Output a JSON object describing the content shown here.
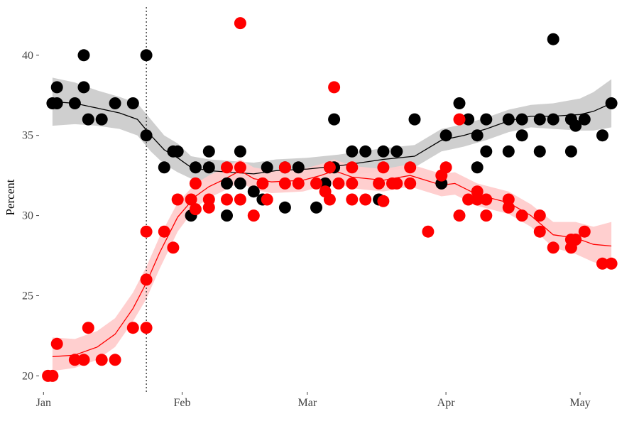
{
  "chart_data": {
    "type": "scatter",
    "title": "",
    "xlabel": "",
    "ylabel": "Percent",
    "xlim": [
      "2021-12-31",
      "2022-05-11"
    ],
    "ylim": [
      19,
      43
    ],
    "grid": false,
    "legend": "none",
    "x_ticks": [
      {
        "date": "2022-01-01",
        "label": "Jan"
      },
      {
        "date": "2022-02-01",
        "label": "Feb"
      },
      {
        "date": "2022-03-01",
        "label": "Mar"
      },
      {
        "date": "2022-04-01",
        "label": "Apr"
      },
      {
        "date": "2022-05-01",
        "label": "May"
      }
    ],
    "y_ticks": [
      20,
      25,
      30,
      35,
      40
    ],
    "vline": {
      "date": "2022-01-24",
      "style": "dotted",
      "color": "#333333"
    },
    "series": [
      {
        "color": "#000000",
        "band_color": "#cccccc",
        "points": [
          [
            "2022-01-03",
            37
          ],
          [
            "2022-01-04",
            37
          ],
          [
            "2022-01-04",
            38
          ],
          [
            "2022-01-08",
            37
          ],
          [
            "2022-01-10",
            40
          ],
          [
            "2022-01-10",
            38
          ],
          [
            "2022-01-11",
            36
          ],
          [
            "2022-01-14",
            36
          ],
          [
            "2022-01-17",
            37
          ],
          [
            "2022-01-21",
            37
          ],
          [
            "2022-01-24",
            40
          ],
          [
            "2022-01-24",
            35
          ],
          [
            "2022-01-28",
            33
          ],
          [
            "2022-01-30",
            34
          ],
          [
            "2022-01-31",
            34
          ],
          [
            "2022-02-03",
            30
          ],
          [
            "2022-02-04",
            33
          ],
          [
            "2022-02-07",
            33
          ],
          [
            "2022-02-07",
            34
          ],
          [
            "2022-02-11",
            30
          ],
          [
            "2022-02-11",
            32
          ],
          [
            "2022-02-14",
            32
          ],
          [
            "2022-02-14",
            34
          ],
          [
            "2022-02-17",
            31.5
          ],
          [
            "2022-02-19",
            31
          ],
          [
            "2022-02-20",
            33
          ],
          [
            "2022-02-24",
            30.5
          ],
          [
            "2022-02-24",
            33
          ],
          [
            "2022-02-27",
            33
          ],
          [
            "2022-03-03",
            30.5
          ],
          [
            "2022-03-05",
            32
          ],
          [
            "2022-03-06",
            33
          ],
          [
            "2022-03-07",
            36
          ],
          [
            "2022-03-07",
            33
          ],
          [
            "2022-03-11",
            34
          ],
          [
            "2022-03-14",
            34
          ],
          [
            "2022-03-17",
            31
          ],
          [
            "2022-03-18",
            34
          ],
          [
            "2022-03-21",
            34
          ],
          [
            "2022-03-25",
            36
          ],
          [
            "2022-03-31",
            32
          ],
          [
            "2022-04-01",
            35
          ],
          [
            "2022-04-04",
            37
          ],
          [
            "2022-04-06",
            36
          ],
          [
            "2022-04-08",
            35
          ],
          [
            "2022-04-08",
            33
          ],
          [
            "2022-04-10",
            36
          ],
          [
            "2022-04-10",
            34
          ],
          [
            "2022-04-15",
            36
          ],
          [
            "2022-04-15",
            34
          ],
          [
            "2022-04-18",
            36
          ],
          [
            "2022-04-18",
            35
          ],
          [
            "2022-04-22",
            36
          ],
          [
            "2022-04-22",
            34
          ],
          [
            "2022-04-25",
            36
          ],
          [
            "2022-04-25",
            41
          ],
          [
            "2022-04-29",
            36
          ],
          [
            "2022-04-29",
            34
          ],
          [
            "2022-04-30",
            35.6
          ],
          [
            "2022-05-02",
            36
          ],
          [
            "2022-05-06",
            35
          ],
          [
            "2022-05-08",
            37
          ]
        ],
        "trend": [
          [
            "2022-01-03",
            37.1
          ],
          [
            "2022-01-08",
            37.0
          ],
          [
            "2022-01-13",
            36.7
          ],
          [
            "2022-01-18",
            36.4
          ],
          [
            "2022-01-22",
            36.0
          ],
          [
            "2022-01-25",
            35.0
          ],
          [
            "2022-01-28",
            34.1
          ],
          [
            "2022-01-31",
            33.6
          ],
          [
            "2022-02-03",
            33.0
          ],
          [
            "2022-02-07",
            32.8
          ],
          [
            "2022-02-12",
            32.7
          ],
          [
            "2022-02-17",
            32.6
          ],
          [
            "2022-02-22",
            32.8
          ],
          [
            "2022-03-01",
            32.9
          ],
          [
            "2022-03-08",
            33.1
          ],
          [
            "2022-03-13",
            33.3
          ],
          [
            "2022-03-18",
            33.5
          ],
          [
            "2022-03-25",
            33.7
          ],
          [
            "2022-03-31",
            34.7
          ],
          [
            "2022-04-05",
            35.0
          ],
          [
            "2022-04-10",
            35.4
          ],
          [
            "2022-04-15",
            35.9
          ],
          [
            "2022-04-20",
            36.2
          ],
          [
            "2022-04-25",
            36.2
          ],
          [
            "2022-05-01",
            36.3
          ],
          [
            "2022-05-04",
            36.5
          ],
          [
            "2022-05-08",
            37.0
          ]
        ],
        "band": [
          [
            "2022-01-03",
            35.6,
            38.6
          ],
          [
            "2022-01-08",
            35.7,
            38.3
          ],
          [
            "2022-01-13",
            35.6,
            37.8
          ],
          [
            "2022-01-18",
            35.4,
            37.4
          ],
          [
            "2022-01-22",
            35.0,
            37.0
          ],
          [
            "2022-01-25",
            34.0,
            36.0
          ],
          [
            "2022-01-28",
            33.2,
            35.0
          ],
          [
            "2022-01-31",
            32.7,
            34.5
          ],
          [
            "2022-02-03",
            32.3,
            33.7
          ],
          [
            "2022-02-07",
            32.1,
            33.5
          ],
          [
            "2022-02-12",
            32.0,
            33.4
          ],
          [
            "2022-02-17",
            31.9,
            33.3
          ],
          [
            "2022-02-22",
            32.1,
            33.5
          ],
          [
            "2022-03-01",
            32.2,
            33.6
          ],
          [
            "2022-03-08",
            32.4,
            33.8
          ],
          [
            "2022-03-13",
            32.6,
            34.0
          ],
          [
            "2022-03-18",
            32.8,
            34.2
          ],
          [
            "2022-03-25",
            33.0,
            34.4
          ],
          [
            "2022-03-31",
            34.0,
            35.4
          ],
          [
            "2022-04-05",
            34.3,
            35.7
          ],
          [
            "2022-04-10",
            34.7,
            36.1
          ],
          [
            "2022-04-15",
            35.2,
            36.6
          ],
          [
            "2022-04-20",
            35.5,
            36.9
          ],
          [
            "2022-04-25",
            35.4,
            37.0
          ],
          [
            "2022-05-01",
            35.3,
            37.3
          ],
          [
            "2022-05-04",
            35.3,
            37.7
          ],
          [
            "2022-05-08",
            35.5,
            38.5
          ]
        ]
      },
      {
        "color": "#ff0000",
        "band_color": "#ffcccc",
        "points": [
          [
            "2022-01-02",
            20
          ],
          [
            "2022-01-03",
            20
          ],
          [
            "2022-01-04",
            22
          ],
          [
            "2022-01-08",
            21
          ],
          [
            "2022-01-10",
            21
          ],
          [
            "2022-01-11",
            23
          ],
          [
            "2022-01-14",
            21
          ],
          [
            "2022-01-17",
            21
          ],
          [
            "2022-01-21",
            23
          ],
          [
            "2022-01-24",
            29
          ],
          [
            "2022-01-24",
            26
          ],
          [
            "2022-01-24",
            23
          ],
          [
            "2022-01-28",
            29
          ],
          [
            "2022-01-30",
            28
          ],
          [
            "2022-01-31",
            31
          ],
          [
            "2022-02-03",
            31
          ],
          [
            "2022-02-04",
            30.4
          ],
          [
            "2022-02-04",
            32
          ],
          [
            "2022-02-07",
            31
          ],
          [
            "2022-02-07",
            30.5
          ],
          [
            "2022-02-11",
            33
          ],
          [
            "2022-02-11",
            31
          ],
          [
            "2022-02-14",
            42
          ],
          [
            "2022-02-14",
            33
          ],
          [
            "2022-02-14",
            31
          ],
          [
            "2022-02-17",
            30
          ],
          [
            "2022-02-19",
            32
          ],
          [
            "2022-02-20",
            31
          ],
          [
            "2022-02-24",
            32
          ],
          [
            "2022-02-24",
            33
          ],
          [
            "2022-02-27",
            32
          ],
          [
            "2022-03-03",
            32
          ],
          [
            "2022-03-05",
            31.5
          ],
          [
            "2022-03-06",
            33
          ],
          [
            "2022-03-06",
            31
          ],
          [
            "2022-03-07",
            38
          ],
          [
            "2022-03-08",
            32
          ],
          [
            "2022-03-11",
            33
          ],
          [
            "2022-03-11",
            32
          ],
          [
            "2022-03-11",
            31
          ],
          [
            "2022-03-14",
            31
          ],
          [
            "2022-03-17",
            32
          ],
          [
            "2022-03-18",
            33
          ],
          [
            "2022-03-18",
            30.9
          ],
          [
            "2022-03-20",
            32
          ],
          [
            "2022-03-21",
            32
          ],
          [
            "2022-03-24",
            32
          ],
          [
            "2022-03-24",
            33
          ],
          [
            "2022-03-28",
            29
          ],
          [
            "2022-03-31",
            32.5
          ],
          [
            "2022-04-01",
            33
          ],
          [
            "2022-04-04",
            36
          ],
          [
            "2022-04-04",
            30
          ],
          [
            "2022-04-06",
            31
          ],
          [
            "2022-04-08",
            31.5
          ],
          [
            "2022-04-08",
            31
          ],
          [
            "2022-04-10",
            31
          ],
          [
            "2022-04-10",
            30
          ],
          [
            "2022-04-15",
            31
          ],
          [
            "2022-04-15",
            30.5
          ],
          [
            "2022-04-18",
            30
          ],
          [
            "2022-04-22",
            29
          ],
          [
            "2022-04-22",
            30
          ],
          [
            "2022-04-25",
            28
          ],
          [
            "2022-04-29",
            28
          ],
          [
            "2022-04-29",
            28.5
          ],
          [
            "2022-04-30",
            28.5
          ],
          [
            "2022-05-02",
            29
          ],
          [
            "2022-05-06",
            27
          ],
          [
            "2022-05-08",
            27
          ]
        ],
        "trend": [
          [
            "2022-01-03",
            21.2
          ],
          [
            "2022-01-08",
            21.3
          ],
          [
            "2022-01-13",
            21.8
          ],
          [
            "2022-01-17",
            22.6
          ],
          [
            "2022-01-21",
            24.2
          ],
          [
            "2022-01-24",
            25.8
          ],
          [
            "2022-01-27",
            27.7
          ],
          [
            "2022-01-31",
            29.9
          ],
          [
            "2022-02-04",
            31.2
          ],
          [
            "2022-02-07",
            31.8
          ],
          [
            "2022-02-10",
            32.2
          ],
          [
            "2022-02-14",
            32.8
          ],
          [
            "2022-02-17",
            32.3
          ],
          [
            "2022-02-21",
            32.1
          ],
          [
            "2022-02-28",
            32.2
          ],
          [
            "2022-03-04",
            32.5
          ],
          [
            "2022-03-07",
            32.8
          ],
          [
            "2022-03-11",
            32.4
          ],
          [
            "2022-03-18",
            32.2
          ],
          [
            "2022-03-24",
            32.5
          ],
          [
            "2022-03-31",
            31.9
          ],
          [
            "2022-04-03",
            32.0
          ],
          [
            "2022-04-08",
            31.3
          ],
          [
            "2022-04-15",
            30.8
          ],
          [
            "2022-04-20",
            30.0
          ],
          [
            "2022-04-25",
            28.8
          ],
          [
            "2022-04-30",
            28.6
          ],
          [
            "2022-05-04",
            28.2
          ],
          [
            "2022-05-08",
            28.1
          ]
        ],
        "band": [
          [
            "2022-01-03",
            20.3,
            22.4
          ],
          [
            "2022-01-08",
            20.5,
            22.3
          ],
          [
            "2022-01-13",
            21.0,
            22.8
          ],
          [
            "2022-01-17",
            21.8,
            23.6
          ],
          [
            "2022-01-21",
            23.4,
            25.2
          ],
          [
            "2022-01-24",
            24.8,
            26.8
          ],
          [
            "2022-01-27",
            26.7,
            28.7
          ],
          [
            "2022-01-31",
            29.0,
            30.8
          ],
          [
            "2022-02-04",
            30.5,
            32.0
          ],
          [
            "2022-02-07",
            31.1,
            32.5
          ],
          [
            "2022-02-10",
            31.5,
            32.9
          ],
          [
            "2022-02-14",
            32.1,
            33.5
          ],
          [
            "2022-02-17",
            31.6,
            33.0
          ],
          [
            "2022-02-21",
            31.4,
            32.8
          ],
          [
            "2022-02-28",
            31.5,
            32.9
          ],
          [
            "2022-03-04",
            31.8,
            33.2
          ],
          [
            "2022-03-07",
            32.1,
            33.5
          ],
          [
            "2022-03-11",
            31.7,
            33.1
          ],
          [
            "2022-03-18",
            31.5,
            32.9
          ],
          [
            "2022-03-24",
            31.8,
            33.2
          ],
          [
            "2022-03-31",
            31.2,
            32.6
          ],
          [
            "2022-04-03",
            31.3,
            32.7
          ],
          [
            "2022-04-08",
            30.6,
            32.0
          ],
          [
            "2022-04-15",
            30.1,
            31.5
          ],
          [
            "2022-04-20",
            29.3,
            30.7
          ],
          [
            "2022-04-25",
            28.0,
            29.6
          ],
          [
            "2022-04-30",
            27.6,
            29.6
          ],
          [
            "2022-05-04",
            27.1,
            29.3
          ],
          [
            "2022-05-08",
            26.8,
            29.6
          ]
        ]
      }
    ]
  }
}
